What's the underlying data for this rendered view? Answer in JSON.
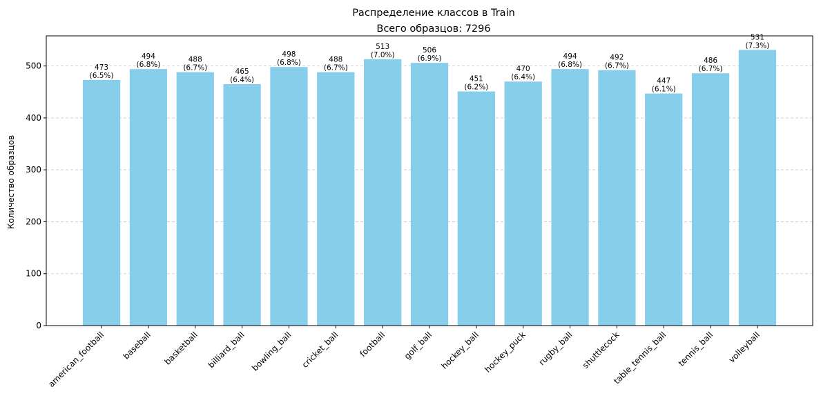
{
  "chart_data": {
    "type": "bar",
    "title": "Распределение классов в Train",
    "subtitle": "Всего образцов: 7296",
    "xlabel": "",
    "ylabel": "Количество образцов",
    "ylim": [
      0,
      558
    ],
    "yticks": [
      0,
      100,
      200,
      300,
      400,
      500
    ],
    "grid": "y-dashed",
    "bar_color": "#87CEEB",
    "categories": [
      "american_football",
      "baseball",
      "basketball",
      "billiard_ball",
      "bowling_ball",
      "cricket_ball",
      "football",
      "golf_ball",
      "hockey_ball",
      "hockey_puck",
      "rugby_ball",
      "shuttlecock",
      "table_tennis_ball",
      "tennis_ball",
      "volleyball"
    ],
    "values": [
      473,
      494,
      488,
      465,
      498,
      488,
      513,
      506,
      451,
      470,
      494,
      492,
      447,
      486,
      531
    ],
    "percent_labels": [
      "(6.5%)",
      "(6.8%)",
      "(6.7%)",
      "(6.4%)",
      "(6.8%)",
      "(6.7%)",
      "(7.0%)",
      "(6.9%)",
      "(6.2%)",
      "(6.4%)",
      "(6.8%)",
      "(6.7%)",
      "(6.1%)",
      "(6.7%)",
      "(7.3%)"
    ]
  }
}
